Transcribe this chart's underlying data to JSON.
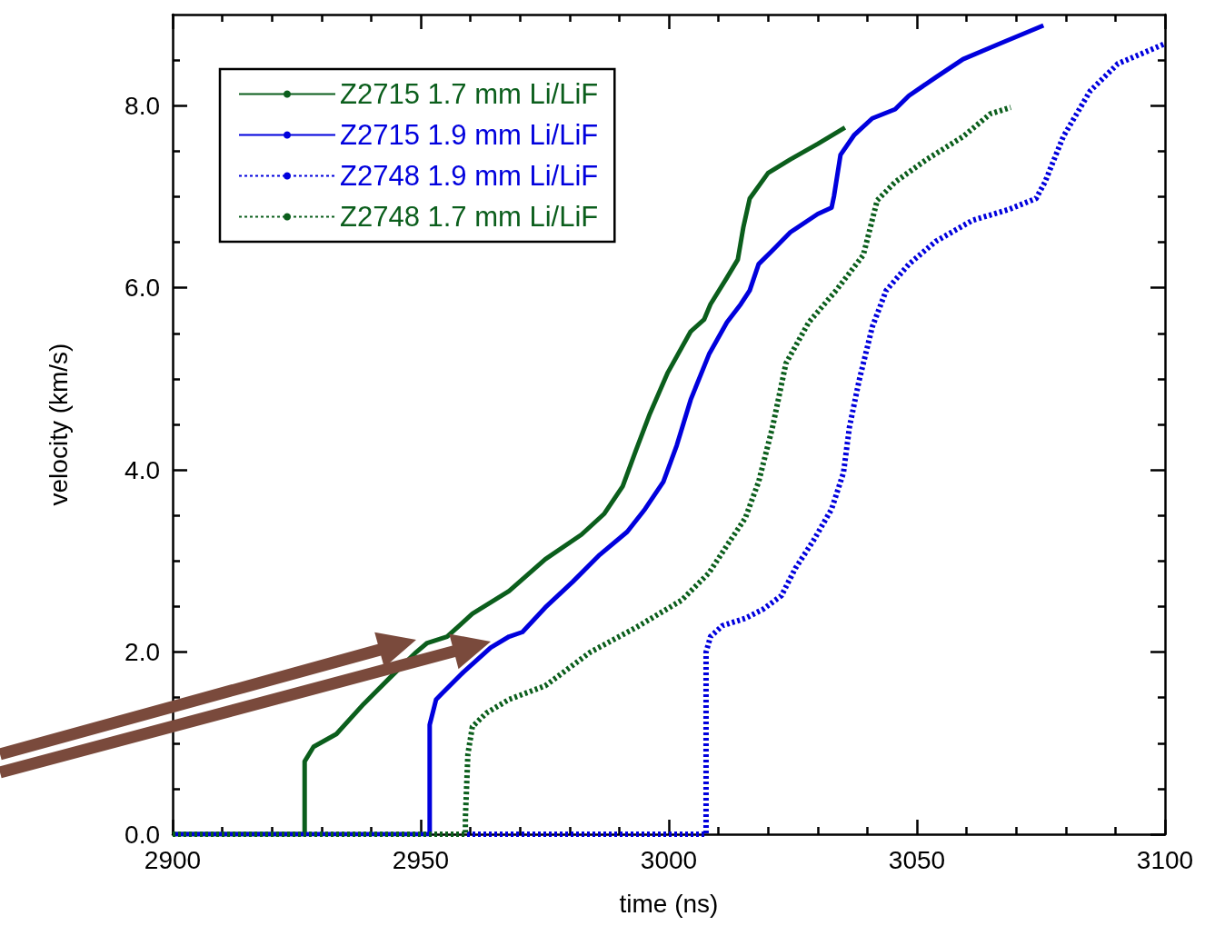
{
  "chart_data": {
    "type": "line",
    "xlabel": "time (ns)",
    "ylabel": "velocity (km/s)",
    "xlim": [
      2900,
      3100
    ],
    "ylim": [
      0,
      9
    ],
    "xticks": [
      2900,
      {
        "value": 2910,
        "label": null
      },
      {
        "value": 2920,
        "label": null
      },
      {
        "value": 2930,
        "label": null
      },
      {
        "value": 2940,
        "label": null
      },
      2950,
      {
        "value": 2960,
        "label": null
      },
      {
        "value": 2970,
        "label": null
      },
      {
        "value": 2980,
        "label": null
      },
      {
        "value": 2990,
        "label": null
      },
      3000,
      {
        "value": 3010,
        "label": null
      },
      {
        "value": 3020,
        "label": null
      },
      {
        "value": 3030,
        "label": null
      },
      {
        "value": 3040,
        "label": null
      },
      3050,
      {
        "value": 3060,
        "label": null
      },
      {
        "value": 3070,
        "label": null
      },
      {
        "value": 3080,
        "label": null
      },
      {
        "value": 3090,
        "label": null
      },
      3100
    ],
    "yticks": [
      {
        "value": 0,
        "label": "0.0"
      },
      {
        "value": 0.5,
        "label": null
      },
      {
        "value": 1,
        "label": null
      },
      {
        "value": 1.5,
        "label": null
      },
      {
        "value": 2,
        "label": "2.0"
      },
      {
        "value": 2.5,
        "label": null
      },
      {
        "value": 3,
        "label": null
      },
      {
        "value": 3.5,
        "label": null
      },
      {
        "value": 4,
        "label": "4.0"
      },
      {
        "value": 4.5,
        "label": null
      },
      {
        "value": 5,
        "label": null
      },
      {
        "value": 5.5,
        "label": null
      },
      {
        "value": 6,
        "label": "6.0"
      },
      {
        "value": 6.5,
        "label": null
      },
      {
        "value": 7,
        "label": null
      },
      {
        "value": 7.5,
        "label": null
      },
      {
        "value": 8,
        "label": "8.0"
      },
      {
        "value": 8.5,
        "label": null
      }
    ],
    "grid": false,
    "legend": "top left",
    "marker": "none",
    "series": [
      {
        "name": "Z2715 1.7 mm Li/LiF",
        "color": "#0b5e1c",
        "line_style": "solid",
        "x": [
          2900,
          2926.6,
          2926.6,
          2928.4,
          2933,
          2938.5,
          2944,
          2949.1,
          2951.3,
          2955.3,
          2960.4,
          2967.8,
          2975.1,
          2982.4,
          2987,
          2990.7,
          2993.4,
          2996.2,
          2999.8,
          3004.4,
          3007.1,
          3008.4,
          3011.7,
          3013.9,
          3015,
          3016.3,
          3020,
          3024.5,
          3030,
          3035.5
        ],
        "values": [
          0,
          0,
          0.8,
          0.96,
          1.1,
          1.43,
          1.73,
          2.0,
          2.1,
          2.17,
          2.42,
          2.67,
          3.02,
          3.29,
          3.52,
          3.82,
          4.22,
          4.62,
          5.07,
          5.52,
          5.65,
          5.82,
          6.11,
          6.31,
          6.66,
          6.98,
          7.26,
          7.41,
          7.58,
          7.76
        ]
      },
      {
        "name": "Z2715 1.9 mm Li/LiF",
        "color": "#0000dd",
        "line_style": "solid",
        "x": [
          2900,
          2951.8,
          2951.8,
          2953.1,
          2954.9,
          2958.6,
          2964.1,
          2967.8,
          2970.5,
          2975.1,
          2980.6,
          2986.1,
          2991.6,
          2995.2,
          2998.9,
          3001.6,
          3004.4,
          3008.1,
          3011.7,
          3014.5,
          3016.3,
          3018.1,
          3020.9,
          3024.5,
          3030,
          3032.8,
          3033.3,
          3034.6,
          3037.4,
          3041,
          3045.6,
          3048.4,
          3053.8,
          3059.3,
          3066.7,
          3075.5
        ],
        "values": [
          0,
          0,
          1.2,
          1.48,
          1.58,
          1.78,
          2.05,
          2.17,
          2.22,
          2.49,
          2.77,
          3.07,
          3.32,
          3.57,
          3.87,
          4.27,
          4.77,
          5.27,
          5.62,
          5.82,
          5.97,
          6.26,
          6.41,
          6.61,
          6.81,
          6.88,
          7.01,
          7.46,
          7.68,
          7.86,
          7.96,
          8.11,
          8.31,
          8.51,
          8.68,
          8.88
        ]
      },
      {
        "name": "Z2748 1.9 mm Li/LiF",
        "color": "#0000dd",
        "line_style": "dotted",
        "x": [
          2900,
          3007.5,
          3007.5,
          3008.4,
          3010.8,
          3015.4,
          3019,
          3022.7,
          3025.5,
          3029.1,
          3032.8,
          3035.2,
          3036.4,
          3038.3,
          3041,
          3043.8,
          3048.4,
          3053.8,
          3061.2,
          3068.5,
          3074,
          3075.8,
          3079.5,
          3084.9,
          3090.5,
          3100
        ],
        "values": [
          0,
          0,
          2.0,
          2.17,
          2.29,
          2.37,
          2.47,
          2.62,
          2.92,
          3.22,
          3.57,
          3.97,
          4.47,
          4.97,
          5.57,
          5.97,
          6.26,
          6.51,
          6.74,
          6.86,
          6.98,
          7.16,
          7.66,
          8.16,
          8.46,
          8.68
        ]
      },
      {
        "name": "Z2748 1.7 mm Li/LiF",
        "color": "#0b5e1c",
        "line_style": "dotted",
        "x": [
          2900,
          2959,
          2959,
          2959.5,
          2960.4,
          2963.2,
          2967.8,
          2975.1,
          2984.2,
          2993.4,
          3002.6,
          3008.1,
          3011.7,
          3015.4,
          3018.1,
          3020.9,
          3023.6,
          3028.2,
          3033.7,
          3039.2,
          3042,
          3045.6,
          3052,
          3059.3,
          3064.8,
          3068.9
        ],
        "values": [
          0,
          0,
          0.18,
          0.88,
          1.18,
          1.33,
          1.48,
          1.63,
          2.0,
          2.27,
          2.57,
          2.87,
          3.17,
          3.47,
          3.87,
          4.47,
          5.17,
          5.62,
          5.97,
          6.36,
          6.96,
          7.16,
          7.41,
          7.66,
          7.91,
          7.98
        ]
      }
    ]
  }
}
